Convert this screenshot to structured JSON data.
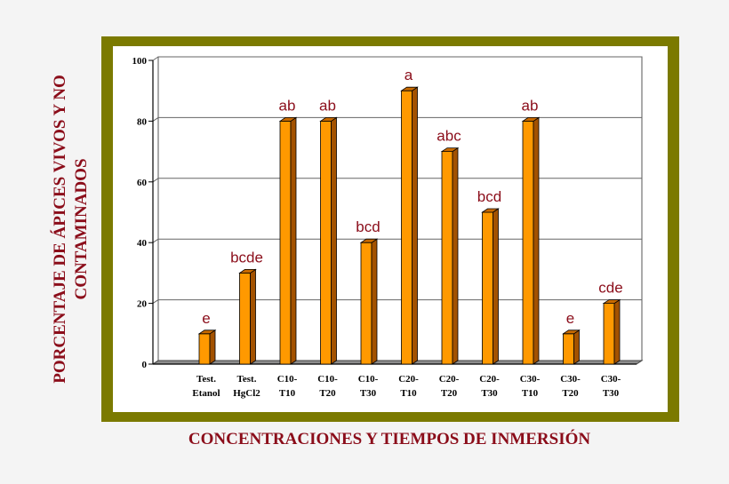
{
  "chart_data": {
    "type": "bar",
    "title": "",
    "ylabel": "PORCENTAJE DE ÁPICES VIVOS Y NO CONTAMINADOS",
    "xlabel": "CONCENTRACIONES Y TIEMPOS DE INMERSIÓN",
    "ylim": [
      0,
      100
    ],
    "yticks": [
      0,
      20,
      40,
      60,
      80,
      100
    ],
    "grid": true,
    "categories": [
      [
        "Test.",
        "Etanol"
      ],
      [
        "Test.",
        "HgCl2"
      ],
      [
        "C10-",
        "T10"
      ],
      [
        "C10-",
        "T20"
      ],
      [
        "C10-",
        "T30"
      ],
      [
        "C20-",
        "T10"
      ],
      [
        "C20-",
        "T20"
      ],
      [
        "C20-",
        "T30"
      ],
      [
        "C30-",
        "T10"
      ],
      [
        "C30-",
        "T20"
      ],
      [
        "C30-",
        "T30"
      ]
    ],
    "values": [
      10,
      30,
      80,
      80,
      40,
      90,
      70,
      50,
      80,
      10,
      20
    ],
    "annotations": [
      "e",
      "bcde",
      "ab",
      "ab",
      "bcd",
      "a",
      "abc",
      "bcd",
      "ab",
      "e",
      "cde"
    ],
    "colors": {
      "bar_front": "#ff9900",
      "bar_side": "#a35200",
      "bar_top": "#c86a00",
      "annotation": "#8b0d1a",
      "axis_label": "#8b0d1a",
      "frame": "#7b7a00",
      "floor": "#8c8c8c"
    }
  }
}
